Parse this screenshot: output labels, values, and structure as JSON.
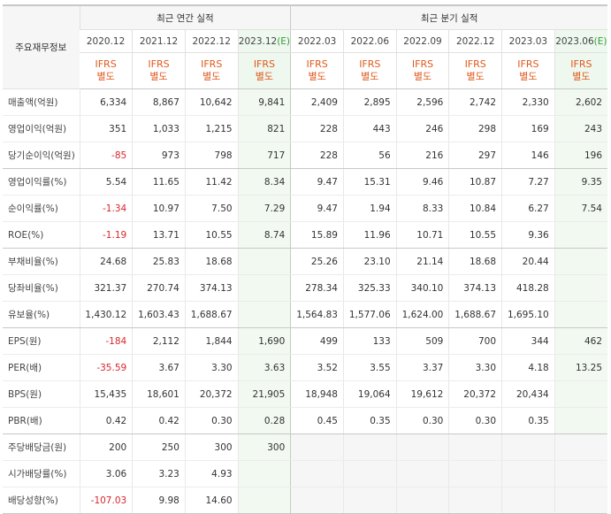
{
  "header": {
    "row_head_label": "주요재무정보",
    "annual_group": "최근 연간 실적",
    "quarter_group": "최근 분기 실적",
    "ifrs_line1": "IFRS",
    "ifrs_line2": "별도",
    "estimate_mark": "(E)",
    "annual_periods": [
      "2020.12",
      "2021.12",
      "2022.12",
      "2023.12"
    ],
    "quarter_periods": [
      "2022.03",
      "2022.06",
      "2022.09",
      "2022.12",
      "2023.03",
      "2023.06"
    ],
    "annual_estimate_index": 3,
    "quarter_estimate_index": 5
  },
  "rows": [
    {
      "label": "매출액(억원)",
      "values": [
        "6,334",
        "8,867",
        "10,642",
        "9,841",
        "2,409",
        "2,895",
        "2,596",
        "2,742",
        "2,330",
        "2,602"
      ]
    },
    {
      "label": "영업이익(억원)",
      "values": [
        "351",
        "1,033",
        "1,215",
        "821",
        "228",
        "443",
        "246",
        "298",
        "169",
        "243"
      ]
    },
    {
      "label": "당기순이익(억원)",
      "values": [
        "-85",
        "973",
        "798",
        "717",
        "228",
        "56",
        "216",
        "297",
        "146",
        "196"
      ]
    },
    {
      "label": "영업이익률(%)",
      "values": [
        "5.54",
        "11.65",
        "11.42",
        "8.34",
        "9.47",
        "15.31",
        "9.46",
        "10.87",
        "7.27",
        "9.35"
      ]
    },
    {
      "label": "순이익률(%)",
      "values": [
        "-1.34",
        "10.97",
        "7.50",
        "7.29",
        "9.47",
        "1.94",
        "8.33",
        "10.84",
        "6.27",
        "7.54"
      ]
    },
    {
      "label": "ROE(%)",
      "values": [
        "-1.19",
        "13.71",
        "10.55",
        "8.74",
        "15.89",
        "11.96",
        "10.71",
        "10.55",
        "9.36",
        ""
      ]
    },
    {
      "label": "부채비율(%)",
      "values": [
        "24.68",
        "25.83",
        "18.68",
        "",
        "25.26",
        "23.10",
        "21.14",
        "18.68",
        "20.44",
        ""
      ]
    },
    {
      "label": "당좌비율(%)",
      "values": [
        "321.37",
        "270.74",
        "374.13",
        "",
        "278.34",
        "325.33",
        "340.10",
        "374.13",
        "418.28",
        ""
      ]
    },
    {
      "label": "유보율(%)",
      "values": [
        "1,430.12",
        "1,603.43",
        "1,688.67",
        "",
        "1,564.83",
        "1,577.06",
        "1,624.00",
        "1,688.67",
        "1,695.10",
        ""
      ]
    },
    {
      "label": "EPS(원)",
      "values": [
        "-184",
        "2,112",
        "1,844",
        "1,690",
        "499",
        "133",
        "509",
        "700",
        "344",
        "462"
      ]
    },
    {
      "label": "PER(배)",
      "values": [
        "-35.59",
        "3.67",
        "3.30",
        "3.63",
        "3.52",
        "3.55",
        "3.37",
        "3.30",
        "4.18",
        "13.25"
      ]
    },
    {
      "label": "BPS(원)",
      "values": [
        "15,435",
        "18,601",
        "20,372",
        "21,905",
        "18,948",
        "19,064",
        "19,612",
        "20,372",
        "20,434",
        ""
      ]
    },
    {
      "label": "PBR(배)",
      "values": [
        "0.42",
        "0.42",
        "0.30",
        "0.28",
        "0.45",
        "0.35",
        "0.30",
        "0.30",
        "0.35",
        ""
      ]
    },
    {
      "label": "주당배당금(원)",
      "values": [
        "200",
        "250",
        "300",
        "300",
        "",
        "",
        "",
        "",
        "",
        ""
      ]
    },
    {
      "label": "시가배당률(%)",
      "values": [
        "3.06",
        "3.23",
        "4.93",
        "",
        "",
        "",
        "",
        "",
        "",
        ""
      ]
    },
    {
      "label": "배당성향(%)",
      "values": [
        "-107.03",
        "9.98",
        "14.60",
        "",
        "",
        "",
        "",
        "",
        "",
        ""
      ]
    }
  ],
  "group_end_rows": [
    2,
    5,
    8,
    12
  ],
  "no_data_rows": [
    13,
    14,
    15
  ],
  "colors": {
    "negative": "#d9262b",
    "ifrs": "#e0591c",
    "estimate_bg": "#f1f9f1",
    "estimate_mark": "#3a9a3a"
  }
}
